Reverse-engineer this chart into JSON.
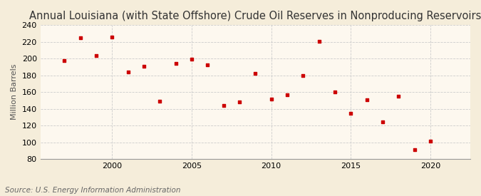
{
  "title": "Annual Louisiana (with State Offshore) Crude Oil Reserves in Nonproducing Reservoirs",
  "ylabel": "Million Barrels",
  "source": "Source: U.S. Energy Information Administration",
  "years": [
    1997,
    1998,
    1999,
    2000,
    2001,
    2002,
    2003,
    2004,
    2005,
    2006,
    2007,
    2008,
    2009,
    2010,
    2011,
    2012,
    2013,
    2014,
    2015,
    2016,
    2017,
    2018,
    2019,
    2020,
    2021
  ],
  "values": [
    198,
    225,
    204,
    226,
    184,
    191,
    149,
    194,
    199,
    193,
    144,
    148,
    182,
    152,
    157,
    180,
    221,
    160,
    135,
    151,
    124,
    155,
    91,
    101,
    null
  ],
  "marker_color": "#cc0000",
  "outer_bg": "#f5edda",
  "plot_bg": "#fdf8ef",
  "grid_color": "#cccccc",
  "ylim": [
    80,
    240
  ],
  "yticks": [
    80,
    100,
    120,
    140,
    160,
    180,
    200,
    220,
    240
  ],
  "xticks": [
    2000,
    2005,
    2010,
    2015,
    2020
  ],
  "xlim": [
    1995.5,
    2022.5
  ],
  "title_fontsize": 10.5,
  "tick_fontsize": 8,
  "ylabel_fontsize": 8,
  "source_fontsize": 7.5
}
